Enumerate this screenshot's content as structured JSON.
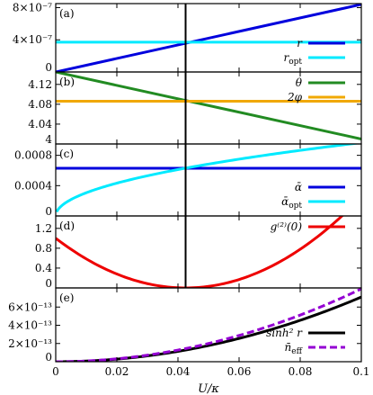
{
  "chart_data": [
    {
      "panel": "(a)",
      "type": "line",
      "xlim": [
        0,
        0.1
      ],
      "ylim": [
        0,
        8.5e-07
      ],
      "yticks": [
        {
          "v": 0,
          "label": "0"
        },
        {
          "v": 4e-07,
          "label": "4×10⁻⁷"
        },
        {
          "v": 8e-07,
          "label": "8×10⁻⁷"
        }
      ],
      "vline": 0.0425,
      "series": [
        {
          "name": "r",
          "color": "#0000dd",
          "x": [
            0,
            0.1
          ],
          "y": [
            0,
            8.4e-07
          ]
        },
        {
          "name": "r_opt",
          "color": "#00eaff",
          "x": [
            0,
            0.1
          ],
          "y": [
            3.7e-07,
            3.7e-07
          ]
        }
      ],
      "legend": [
        {
          "text": "r",
          "color": "#0000dd"
        },
        {
          "text": "r_opt",
          "color": "#00eaff"
        }
      ],
      "legend_pos": "bottom-right"
    },
    {
      "panel": "(b)",
      "type": "line",
      "xlim": [
        0,
        0.1
      ],
      "ylim": [
        4.0,
        4.145
      ],
      "yticks": [
        {
          "v": 4.0,
          "label": "4"
        },
        {
          "v": 4.04,
          "label": "4.04"
        },
        {
          "v": 4.08,
          "label": "4.08"
        },
        {
          "v": 4.12,
          "label": "4.12"
        }
      ],
      "vline": 0.0425,
      "series": [
        {
          "name": "θ",
          "color": "#228b22",
          "x": [
            0,
            0.1
          ],
          "y": [
            4.145,
            4.01
          ]
        },
        {
          "name": "2φ",
          "color": "#f0a800",
          "x": [
            0,
            0.1
          ],
          "y": [
            4.086,
            4.086
          ]
        }
      ],
      "legend": [
        {
          "text": "θ",
          "color": "#228b22"
        },
        {
          "text": "2φ",
          "color": "#f0a800"
        }
      ],
      "legend_pos": "top-right"
    },
    {
      "panel": "(c)",
      "type": "line",
      "xlim": [
        0,
        0.1
      ],
      "ylim": [
        0,
        0.00095
      ],
      "yticks": [
        {
          "v": 0,
          "label": "0"
        },
        {
          "v": 0.0004,
          "label": "0.0004"
        },
        {
          "v": 0.0008,
          "label": "0.0008"
        }
      ],
      "vline": 0.0425,
      "series": [
        {
          "name": "ᾱ",
          "color": "#0000dd",
          "x": [
            0,
            0.1
          ],
          "y": [
            0.00063,
            0.00063
          ]
        },
        {
          "name": "ᾱ_opt",
          "color": "#00eaff",
          "fn": "sqrt",
          "coef": 0.00306,
          "x0": 0.0003,
          "x1": 0.1
        }
      ],
      "legend": [
        {
          "text": "ᾱ",
          "color": "#0000dd"
        },
        {
          "text": "ᾱ_opt",
          "color": "#00eaff"
        }
      ],
      "legend_pos": "bottom-right"
    },
    {
      "panel": "(d)",
      "type": "line",
      "xlim": [
        0,
        0.1
      ],
      "ylim": [
        0,
        1.45
      ],
      "yticks": [
        {
          "v": 0,
          "label": "0"
        },
        {
          "v": 0.4,
          "label": "0.4"
        },
        {
          "v": 0.8,
          "label": "0.8"
        },
        {
          "v": 1.2,
          "label": "1.2"
        }
      ],
      "vline": 0.0425,
      "series": [
        {
          "name": "g⁽²⁾(0)",
          "color": "#ee0000",
          "fn": "parabola",
          "xmin": 0.0425,
          "ymax0": 1.0,
          "x1": 0.1
        }
      ],
      "legend": [
        {
          "text": "g⁽²⁾(0)",
          "color": "#ee0000"
        }
      ],
      "legend_pos": "top-right"
    },
    {
      "panel": "(e)",
      "type": "line",
      "xlim": [
        0,
        0.1
      ],
      "ylim": [
        0,
        8.1e-13
      ],
      "yticks": [
        {
          "v": 0,
          "label": "0"
        },
        {
          "v": 2e-13,
          "label": "2×10⁻¹³"
        },
        {
          "v": 4e-13,
          "label": "4×10⁻¹³"
        },
        {
          "v": 6e-13,
          "label": "6×10⁻¹³"
        }
      ],
      "vline": null,
      "series": [
        {
          "name": "sinh² r",
          "color": "#000000",
          "fn": "square",
          "coef": 7.1e-11,
          "x1": 0.1
        },
        {
          "name": "n̄_eff",
          "color": "#9400d3",
          "dashed": true,
          "fn": "square",
          "coef": 8e-11,
          "x1": 0.1
        }
      ],
      "legend": [
        {
          "text": "sinh² r",
          "color": "#000000"
        },
        {
          "text": "n̄_eff",
          "color": "#9400d3",
          "dashed": true
        }
      ],
      "legend_pos": "bottom-right"
    }
  ],
  "x_axis": {
    "label": "U/κ",
    "ticks": [
      {
        "v": 0,
        "label": "0"
      },
      {
        "v": 0.02,
        "label": "0.02"
      },
      {
        "v": 0.04,
        "label": "0.04"
      },
      {
        "v": 0.06,
        "label": "0.06"
      },
      {
        "v": 0.08,
        "label": "0.08"
      },
      {
        "v": 0.1,
        "label": "0.1"
      }
    ]
  }
}
